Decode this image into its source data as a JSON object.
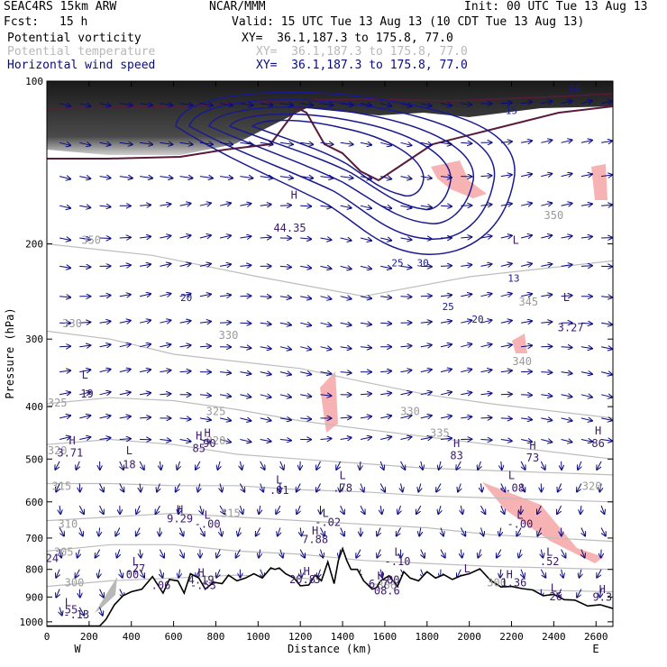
{
  "header": {
    "model": "SEAC4RS 15km ARW",
    "org": "NCAR/MMM",
    "init": "Init: 00 UTC Tue 13 Aug 13",
    "fcst_label": "Fcst:",
    "fcst_value": "15 h",
    "valid": "Valid: 15 UTC Tue 13 Aug 13 (10 CDT Tue 13 Aug 13)",
    "fields": [
      {
        "name": "Potential vorticity",
        "xy": "XY=  36.1,187.3 to 175.8, 77.0",
        "color": "#000000"
      },
      {
        "name": "Potential temperature",
        "xy": "XY=  36.1,187.3 to 175.8, 77.0",
        "color": "#b8b8b8"
      },
      {
        "name": "Horizontal wind speed",
        "xy": "XY=  36.1,187.3 to 175.8, 77.0",
        "color": "#0a0a80"
      }
    ]
  },
  "chart_data": {
    "type": "cross-section",
    "xlabel": "Distance (km)",
    "ylabel": "Pressure (hPa)",
    "xlim": [
      0,
      2680
    ],
    "ylim": [
      100,
      1020
    ],
    "y_scale": "log (inverted)",
    "x_ticks": [
      0,
      200,
      400,
      600,
      800,
      1000,
      1200,
      1400,
      1600,
      1800,
      2000,
      2200,
      2400,
      2600
    ],
    "y_ticks": [
      100,
      200,
      300,
      400,
      500,
      600,
      700,
      800,
      900,
      1000
    ],
    "x_end_labels": {
      "left": "W",
      "right": "E"
    },
    "terrain_surface_pressure": [
      [
        0,
        1018
      ],
      [
        250,
        1018
      ],
      [
        280,
        990
      ],
      [
        320,
        930
      ],
      [
        360,
        895
      ],
      [
        400,
        880
      ],
      [
        450,
        870
      ],
      [
        500,
        825
      ],
      [
        550,
        885
      ],
      [
        580,
        835
      ],
      [
        620,
        840
      ],
      [
        650,
        885
      ],
      [
        680,
        815
      ],
      [
        720,
        830
      ],
      [
        750,
        870
      ],
      [
        790,
        845
      ],
      [
        830,
        850
      ],
      [
        860,
        820
      ],
      [
        900,
        840
      ],
      [
        940,
        830
      ],
      [
        980,
        815
      ],
      [
        1020,
        830
      ],
      [
        1060,
        795
      ],
      [
        1080,
        800
      ],
      [
        1100,
        795
      ],
      [
        1130,
        815
      ],
      [
        1170,
        830
      ],
      [
        1200,
        858
      ],
      [
        1240,
        855
      ],
      [
        1270,
        820
      ],
      [
        1300,
        840
      ],
      [
        1330,
        775
      ],
      [
        1360,
        850
      ],
      [
        1380,
        770
      ],
      [
        1400,
        732
      ],
      [
        1420,
        770
      ],
      [
        1440,
        800
      ],
      [
        1470,
        800
      ],
      [
        1500,
        840
      ],
      [
        1540,
        870
      ],
      [
        1560,
        865
      ],
      [
        1580,
        840
      ],
      [
        1620,
        822
      ],
      [
        1660,
        860
      ],
      [
        1690,
        808
      ],
      [
        1720,
        830
      ],
      [
        1760,
        840
      ],
      [
        1800,
        808
      ],
      [
        1840,
        830
      ],
      [
        1880,
        818
      ],
      [
        1920,
        835
      ],
      [
        1960,
        822
      ],
      [
        2000,
        815
      ],
      [
        2050,
        798
      ],
      [
        2100,
        838
      ],
      [
        2150,
        862
      ],
      [
        2200,
        860
      ],
      [
        2250,
        868
      ],
      [
        2300,
        873
      ],
      [
        2350,
        895
      ],
      [
        2400,
        890
      ],
      [
        2450,
        910
      ],
      [
        2500,
        912
      ],
      [
        2560,
        935
      ],
      [
        2620,
        930
      ],
      [
        2680,
        945
      ]
    ],
    "theta_contour_labels": [
      {
        "text": "350",
        "x": 210,
        "p": 200
      },
      {
        "text": "330",
        "x": 120,
        "p": 285
      },
      {
        "text": "325",
        "x": 50,
        "p": 400
      },
      {
        "text": "320",
        "x": 50,
        "p": 490
      },
      {
        "text": "315",
        "x": 70,
        "p": 570
      },
      {
        "text": "310",
        "x": 100,
        "p": 670
      },
      {
        "text": "305",
        "x": 80,
        "p": 755
      },
      {
        "text": "300",
        "x": 130,
        "p": 860
      },
      {
        "text": "330",
        "x": 860,
        "p": 300
      },
      {
        "text": "325",
        "x": 800,
        "p": 415
      },
      {
        "text": "320",
        "x": 800,
        "p": 470
      },
      {
        "text": "315",
        "x": 870,
        "p": 640
      },
      {
        "text": "330",
        "x": 1720,
        "p": 415
      },
      {
        "text": "335",
        "x": 1860,
        "p": 455
      },
      {
        "text": "340",
        "x": 2250,
        "p": 335
      },
      {
        "text": "345",
        "x": 2280,
        "p": 260
      },
      {
        "text": "350",
        "x": 2400,
        "p": 180
      },
      {
        "text": "320",
        "x": 2580,
        "p": 570
      },
      {
        "text": "300",
        "x": 2130,
        "p": 860
      },
      {
        "text": "306",
        "x": 1610,
        "p": 870
      }
    ],
    "wind_speed_labels": [
      {
        "text": "20",
        "x": 660,
        "p": 255
      },
      {
        "text": "25",
        "x": 1660,
        "p": 220
      },
      {
        "text": "30",
        "x": 1780,
        "p": 220
      },
      {
        "text": "20",
        "x": 2040,
        "p": 280
      },
      {
        "text": "25",
        "x": 1900,
        "p": 265
      },
      {
        "text": "28",
        "x": 2010,
        "p": 100
      },
      {
        "text": "15",
        "x": 2200,
        "p": 115
      },
      {
        "text": "66",
        "x": 2500,
        "p": 105
      },
      {
        "text": "13",
        "x": 2210,
        "p": 235
      }
    ],
    "extrema_labels": [
      {
        "text": "H",
        "x": 1170,
        "p": 165
      },
      {
        "text": "44.35",
        "x": 1150,
        "p": 190
      },
      {
        "text": "L",
        "x": 2220,
        "p": 200
      },
      {
        "text": "L",
        "x": 2460,
        "p": 255
      },
      {
        "text": "3.27",
        "x": 2480,
        "p": 290
      },
      {
        "text": "L",
        "x": 180,
        "p": 355
      },
      {
        "text": "19",
        "x": 190,
        "p": 385
      },
      {
        "text": "H",
        "x": 760,
        "p": 455
      },
      {
        "text": "90",
        "x": 770,
        "p": 475
      },
      {
        "text": "H",
        "x": 120,
        "p": 470
      },
      {
        "text": "3.71",
        "x": 110,
        "p": 495
      },
      {
        "text": "L",
        "x": 390,
        "p": 490
      },
      {
        "text": "18",
        "x": 390,
        "p": 520
      },
      {
        "text": "H",
        "x": 720,
        "p": 460
      },
      {
        "text": "85",
        "x": 720,
        "p": 485
      },
      {
        "text": "H",
        "x": 2610,
        "p": 450
      },
      {
        "text": "86",
        "x": 2610,
        "p": 475
      },
      {
        "text": "H",
        "x": 1940,
        "p": 475
      },
      {
        "text": "83",
        "x": 1940,
        "p": 500
      },
      {
        "text": "H",
        "x": 2300,
        "p": 480
      },
      {
        "text": "73",
        "x": 2300,
        "p": 505
      },
      {
        "text": "L",
        "x": 1100,
        "p": 555
      },
      {
        "text": ".01",
        "x": 1100,
        "p": 580
      },
      {
        "text": "L",
        "x": 1400,
        "p": 545
      },
      {
        "text": ".78",
        "x": 1400,
        "p": 575
      },
      {
        "text": "L",
        "x": 2200,
        "p": 545
      },
      {
        "text": "-.08",
        "x": 2200,
        "p": 575
      },
      {
        "text": "H",
        "x": 630,
        "p": 630
      },
      {
        "text": "9.29",
        "x": 630,
        "p": 655
      },
      {
        "text": "L",
        "x": 760,
        "p": 645
      },
      {
        "text": "-.00",
        "x": 760,
        "p": 670
      },
      {
        "text": "L",
        "x": 1320,
        "p": 640
      },
      {
        "text": "-.02",
        "x": 1330,
        "p": 665
      },
      {
        "text": "H",
        "x": 1270,
        "p": 690
      },
      {
        "text": "7.88",
        "x": 1270,
        "p": 715
      },
      {
        "text": "L",
        "x": 2240,
        "p": 645
      },
      {
        "text": "-.00",
        "x": 2240,
        "p": 670
      },
      {
        "text": "L",
        "x": 1660,
        "p": 755
      },
      {
        "text": "-.10",
        "x": 1660,
        "p": 785
      },
      {
        "text": "L",
        "x": 2380,
        "p": 755
      },
      {
        "text": ".52",
        "x": 2380,
        "p": 785
      },
      {
        "text": "L",
        "x": 420,
        "p": 785
      },
      {
        "text": ".27",
        "x": 420,
        "p": 810
      },
      {
        "text": ".00",
        "x": 390,
        "p": 830
      },
      {
        "text": ".24",
        "x": 10,
        "p": 775
      },
      {
        "text": "H",
        "x": 730,
        "p": 825
      },
      {
        "text": "4.19",
        "x": 730,
        "p": 850
      },
      {
        "text": "-.53",
        "x": 740,
        "p": 870
      },
      {
        "text": ".06",
        "x": 540,
        "p": 870
      },
      {
        "text": "H",
        "x": 1230,
        "p": 820
      },
      {
        "text": "20.8",
        "x": 1210,
        "p": 848
      },
      {
        "text": "3",
        "x": 1280,
        "p": 848
      },
      {
        "text": "H",
        "x": 1580,
        "p": 835
      },
      {
        "text": "6.7",
        "x": 1570,
        "p": 865
      },
      {
        "text": "00",
        "x": 1640,
        "p": 850
      },
      {
        "text": "08.6",
        "x": 1610,
        "p": 890
      },
      {
        "text": "L",
        "x": 1990,
        "p": 810
      },
      {
        "text": "H",
        "x": 2190,
        "p": 830
      },
      {
        "text": "1.36",
        "x": 2210,
        "p": 860
      },
      {
        "text": "L",
        "x": 2400,
        "p": 880
      },
      {
        "text": "26",
        "x": 2410,
        "p": 912
      },
      {
        "text": "H",
        "x": 2630,
        "p": 885
      },
      {
        "text": "9.3",
        "x": 2630,
        "p": 915
      },
      {
        "text": "L",
        "x": 100,
        "p": 935
      },
      {
        "text": ".55",
        "x": 100,
        "p": 965
      },
      {
        "text": "-.13",
        "x": 140,
        "p": 985
      }
    ],
    "wind_vectors": "dense field of horizontal wind vectors; mostly westerly (eastward) aloft, weak and variable at low levels"
  }
}
